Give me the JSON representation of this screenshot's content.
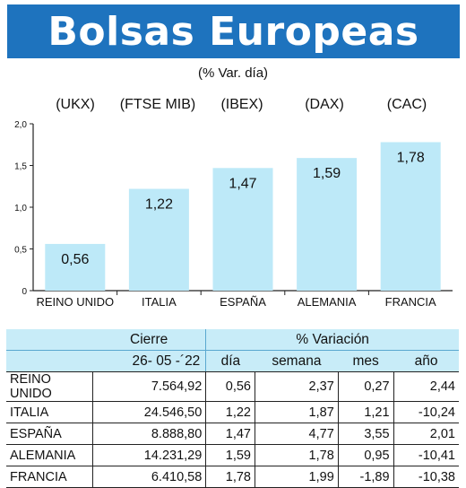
{
  "title": "Bolsas Europeas",
  "subtitle": "(% Var. día)",
  "index_labels": [
    "(UKX)",
    "(FTSE MIB)",
    "(IBEX)",
    "(DAX)",
    "(CAC)"
  ],
  "colors": {
    "title_bg": "#1e73be",
    "bar": "#bde9f8",
    "table_header": "#c8ecf8"
  },
  "chart_data": {
    "type": "bar",
    "categories": [
      "REINO UNIDO",
      "ITALIA",
      "ESPAÑA",
      "ALEMANIA",
      "FRANCIA"
    ],
    "values": [
      0.56,
      1.22,
      1.47,
      1.59,
      1.78
    ],
    "data_labels": [
      "0,56",
      "1,22",
      "1,47",
      "1,59",
      "1,78"
    ],
    "yticks": [
      0,
      0.5,
      1.0,
      1.5,
      2.0
    ],
    "ytick_labels": [
      "0",
      "0,5",
      "1,0",
      "1,5",
      "2,0"
    ],
    "ylim": [
      0,
      2.0
    ],
    "grid": false
  },
  "table": {
    "header_cierre": "Cierre",
    "header_variacion": "% Variación",
    "date": "26- 05 -´22",
    "period_headers": [
      "día",
      "semana",
      "mes",
      "año"
    ],
    "rows": [
      {
        "name": "REINO UNIDO",
        "cierre": "7.564,92",
        "dia": "0,56",
        "semana": "2,37",
        "mes": "0,27",
        "anio": "2,44"
      },
      {
        "name": "ITALIA",
        "cierre": "24.546,50",
        "dia": "1,22",
        "semana": "1,87",
        "mes": "1,21",
        "anio": "-10,24"
      },
      {
        "name": "ESPAÑA",
        "cierre": "8.888,80",
        "dia": "1,47",
        "semana": "4,77",
        "mes": "3,55",
        "anio": "2,01"
      },
      {
        "name": "ALEMANIA",
        "cierre": "14.231,29",
        "dia": "1,59",
        "semana": "1,78",
        "mes": "0,95",
        "anio": "-10,41"
      },
      {
        "name": "FRANCIA",
        "cierre": "6.410,58",
        "dia": "1,78",
        "semana": "1,99",
        "mes": "-1,89",
        "anio": "-10,38"
      }
    ]
  }
}
